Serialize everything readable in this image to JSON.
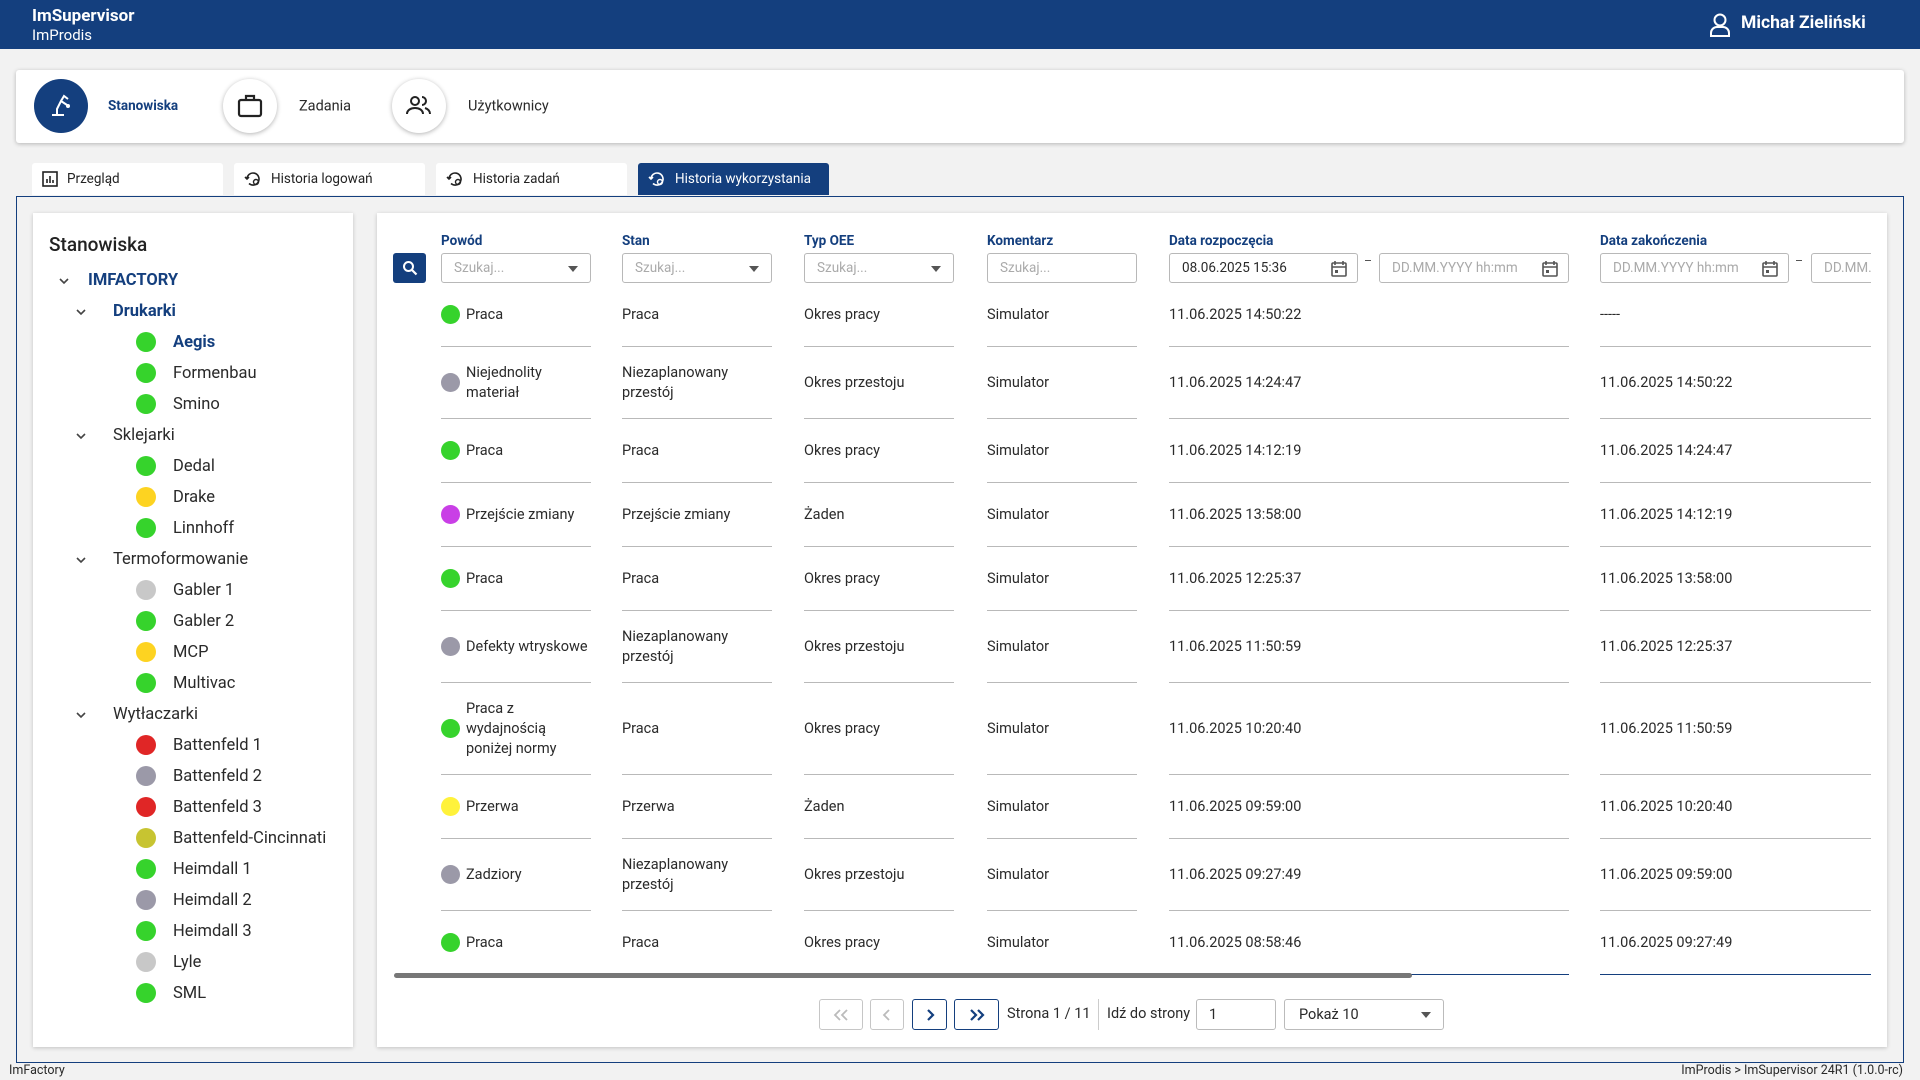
{
  "header": {
    "app": "ImSupervisor",
    "company": "ImProdis",
    "user": "Michał Zieliński"
  },
  "nav": [
    {
      "label": "Stanowiska",
      "active": true
    },
    {
      "label": "Zadania",
      "active": false
    },
    {
      "label": "Użytkownicy",
      "active": false
    }
  ],
  "tabs": {
    "items": [
      "Przegląd",
      "Historia logowań",
      "Historia zadań",
      "Historia wykorzystania"
    ],
    "active": 3
  },
  "tree": {
    "title": "Stanowiska",
    "root": "IMFACTORY",
    "groups": [
      {
        "label": "Drukarki",
        "selected": true,
        "items": [
          {
            "label": "Aegis",
            "color": "#36d32c",
            "selected": true
          },
          {
            "label": "Formenbau",
            "color": "#36d32c",
            "selected": false
          },
          {
            "label": "Smino",
            "color": "#36d32c",
            "selected": false
          }
        ]
      },
      {
        "label": "Sklejarki",
        "selected": false,
        "items": [
          {
            "label": "Dedal",
            "color": "#36d32c",
            "selected": false
          },
          {
            "label": "Drake",
            "color": "#fdd321",
            "selected": false
          },
          {
            "label": "Linnhoff",
            "color": "#36d32c",
            "selected": false
          }
        ]
      },
      {
        "label": "Termoformowanie",
        "selected": false,
        "items": [
          {
            "label": "Gabler 1",
            "color": "#c8c8c8",
            "selected": false
          },
          {
            "label": "Gabler 2",
            "color": "#36d32c",
            "selected": false
          },
          {
            "label": "MCP",
            "color": "#fdd321",
            "selected": false
          },
          {
            "label": "Multivac",
            "color": "#36d32c",
            "selected": false
          }
        ]
      },
      {
        "label": "Wytłaczarki",
        "selected": false,
        "items": [
          {
            "label": "Battenfeld 1",
            "color": "#e02626",
            "selected": false
          },
          {
            "label": "Battenfeld 2",
            "color": "#9b99a8",
            "selected": false
          },
          {
            "label": "Battenfeld 3",
            "color": "#e02626",
            "selected": false
          },
          {
            "label": "Battenfeld-Cincinnati",
            "color": "#c7c431",
            "selected": false
          },
          {
            "label": "Heimdall 1",
            "color": "#36d32c",
            "selected": false
          },
          {
            "label": "Heimdall 2",
            "color": "#9b99a8",
            "selected": false
          },
          {
            "label": "Heimdall 3",
            "color": "#36d32c",
            "selected": false
          },
          {
            "label": "Lyle",
            "color": "#c8c8c8",
            "selected": false
          },
          {
            "label": "SML",
            "color": "#36d32c",
            "selected": false
          }
        ]
      }
    ]
  },
  "table": {
    "columns": [
      "Powód",
      "Stan",
      "Typ OEE",
      "Komentarz",
      "Data rozpoczęcia",
      "Data zakończenia"
    ],
    "filters": {
      "placeholder": "Szukaj...",
      "date_from": "08.06.2025 15:36",
      "date_placeholder": "DD.MM.YYYY hh:mm"
    },
    "rows": [
      {
        "color": "#36d32c",
        "reason": "Praca",
        "state": "Praca",
        "oee": "Okres pracy",
        "comment": "Simulator",
        "start": "11.06.2025 14:50:22",
        "end": "-----"
      },
      {
        "color": "#9b99a8",
        "reason": "Niejednolity materiał",
        "state": "Niezaplanowany przestój",
        "oee": "Okres przestoju",
        "comment": "Simulator",
        "start": "11.06.2025 14:24:47",
        "end": "11.06.2025 14:50:22"
      },
      {
        "color": "#36d32c",
        "reason": "Praca",
        "state": "Praca",
        "oee": "Okres pracy",
        "comment": "Simulator",
        "start": "11.06.2025 14:12:19",
        "end": "11.06.2025 14:24:47"
      },
      {
        "color": "#c93fe6",
        "reason": "Przejście zmiany",
        "state": "Przejście zmiany",
        "oee": "Żaden",
        "comment": "Simulator",
        "start": "11.06.2025 13:58:00",
        "end": "11.06.2025 14:12:19"
      },
      {
        "color": "#36d32c",
        "reason": "Praca",
        "state": "Praca",
        "oee": "Okres pracy",
        "comment": "Simulator",
        "start": "11.06.2025 12:25:37",
        "end": "11.06.2025 13:58:00"
      },
      {
        "color": "#9b99a8",
        "reason": "Defekty wtryskowe",
        "state": "Niezaplanowany przestój",
        "oee": "Okres przestoju",
        "comment": "Simulator",
        "start": "11.06.2025 11:50:59",
        "end": "11.06.2025 12:25:37"
      },
      {
        "color": "#36d32c",
        "reason": "Praca z wydajnością poniżej normy",
        "state": "Praca",
        "oee": "Okres pracy",
        "comment": "Simulator",
        "start": "11.06.2025 10:20:40",
        "end": "11.06.2025 11:50:59"
      },
      {
        "color": "#fff23b",
        "reason": "Przerwa",
        "state": "Przerwa",
        "oee": "Żaden",
        "comment": "Simulator",
        "start": "11.06.2025 09:59:00",
        "end": "11.06.2025 10:20:40"
      },
      {
        "color": "#9b99a8",
        "reason": "Zadziory",
        "state": "Niezaplanowany przestój",
        "oee": "Okres przestoju",
        "comment": "Simulator",
        "start": "11.06.2025 09:27:49",
        "end": "11.06.2025 09:59:00"
      },
      {
        "color": "#36d32c",
        "reason": "Praca",
        "state": "Praca",
        "oee": "Okres pracy",
        "comment": "Simulator",
        "start": "11.06.2025 08:58:46",
        "end": "11.06.2025 09:27:49"
      }
    ]
  },
  "pagination": {
    "page_label": "Strona 1 / 11",
    "goto_label": "Idź do strony",
    "goto_value": "1",
    "page_size": "Pokaż 10"
  },
  "footer": {
    "left": "ImFactory",
    "right": "ImProdis > ImSupervisor 24R1 (1.0.0-rc)"
  }
}
